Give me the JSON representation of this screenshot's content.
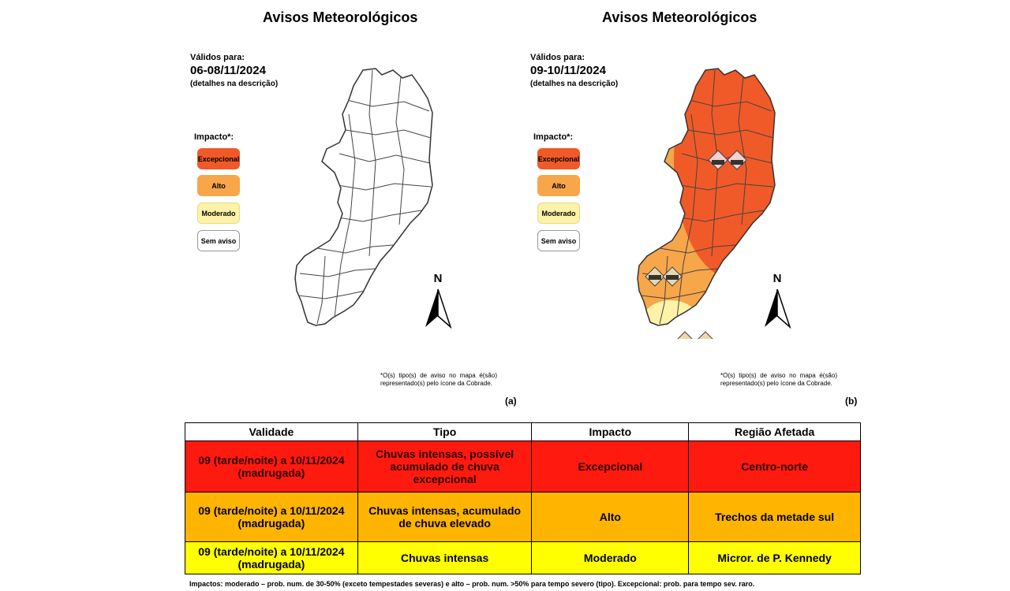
{
  "panel_a": {
    "title": "Avisos Meteorológicos",
    "valid_label": "Válidos para:",
    "date": "06-08/11/2024",
    "details": "(detalhes na descrição)",
    "impact_label": "Impacto*:",
    "legend": [
      "Excepcional",
      "Alto",
      "Moderado",
      "Sem aviso"
    ],
    "north": "N",
    "note": "*O(s) tipo(s) de aviso no mapa é(são) representado(s) pelo ícone da Cobrade.",
    "label": "(a)"
  },
  "panel_b": {
    "title": "Avisos Meteorológicos",
    "valid_label": "Válidos para:",
    "date": "09-10/11/2024",
    "details": "(detalhes na descrição)",
    "impact_label": "Impacto*:",
    "legend": [
      "Excepcional",
      "Alto",
      "Moderado",
      "Sem aviso"
    ],
    "north": "N",
    "note": "*O(s) tipo(s) de aviso no mapa é(são) representado(s) pelo ícone da Cobrade.",
    "label": "(b)"
  },
  "colors": {
    "excepcional": "#f05a28",
    "alto": "#f7a64a",
    "moderado": "#fdf2a8",
    "sem_aviso": "#ffffff",
    "row_excepcional": "#ff1a0f",
    "row_alto": "#ffb400",
    "row_moderado": "#ffff00"
  },
  "table": {
    "headers": [
      "Validade",
      "Tipo",
      "Impacto",
      "Região Afetada"
    ],
    "rows": [
      [
        "09 (tarde/noite) a 10/11/2024 (madrugada)",
        "Chuvas intensas, possível acumulado de chuva excepcional",
        "Excepcional",
        "Centro-norte"
      ],
      [
        "09 (tarde/noite) a 10/11/2024 (madrugada)",
        "Chuvas intensas, acumulado de chuva elevado",
        "Alto",
        "Trechos da metade sul"
      ],
      [
        "09 (tarde/noite) a 10/11/2024 (madrugada)",
        "Chuvas intensas",
        "Moderado",
        "Micror. de P. Kennedy"
      ]
    ]
  },
  "footnote": "Impactos: moderado – prob. num. de 30-50% (exceto tempestades severas) e alto – prob. num. >50% para tempo severo (tipo). Excepcional: prob. para tempo sev. raro."
}
